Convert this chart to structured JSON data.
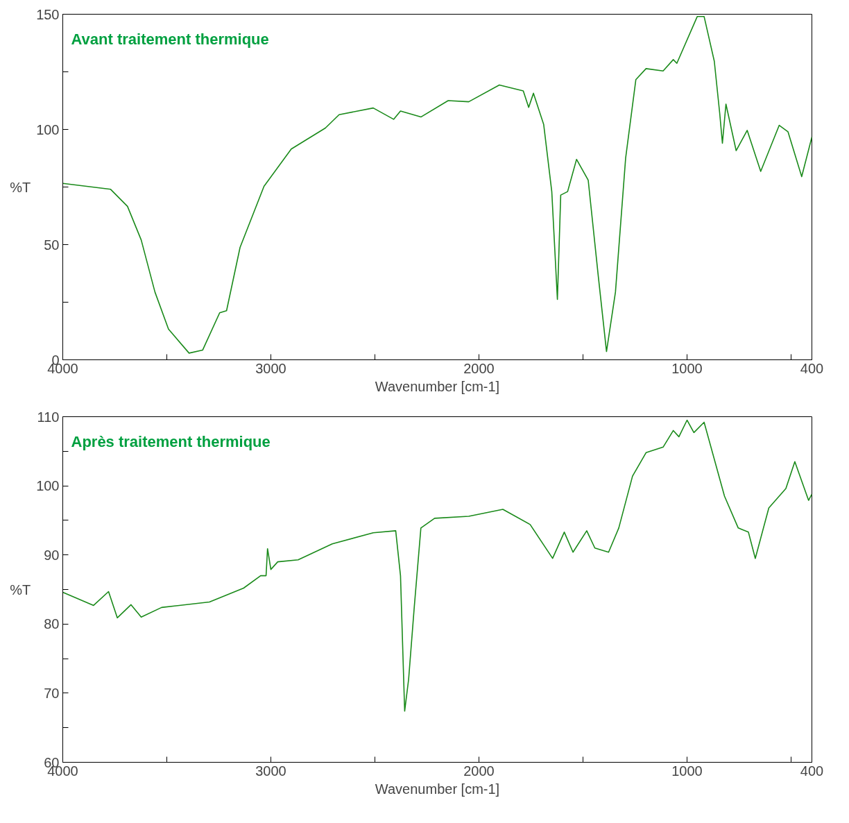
{
  "chart_data": [
    {
      "type": "line",
      "xlabel": "Wavenumber [cm-1]",
      "ylabel": "%T",
      "annotations": [
        "Avant traitement thermique"
      ],
      "grid": false,
      "xlim": [
        4000,
        400
      ],
      "ylim": [
        0,
        150
      ],
      "xticks": [
        4000,
        {
          "value": 3500,
          "label": null
        },
        3000,
        {
          "value": 2500,
          "label": null
        },
        2000,
        {
          "value": 1500,
          "label": null
        },
        1000,
        {
          "value": 500,
          "label": null
        },
        400
      ],
      "yticks": [
        0,
        {
          "value": 25,
          "label": null
        },
        50,
        {
          "value": 75,
          "label": null
        },
        100,
        {
          "value": 125,
          "label": null
        },
        150
      ],
      "series": [
        {
          "color": "#1a8a1a",
          "x": [
            4000,
            3770,
            3689,
            3623,
            3557,
            3492,
            3393,
            3328,
            3246,
            3213,
            3148,
            3033,
            2902,
            2738,
            2672,
            2508,
            2410,
            2377,
            2279,
            2148,
            2049,
            1902,
            1787,
            1761,
            1738,
            1689,
            1650,
            1623,
            1607,
            1574,
            1531,
            1475,
            1426,
            1387,
            1344,
            1295,
            1246,
            1197,
            1115,
            1066,
            1049,
            951,
            918,
            869,
            843,
            830,
            813,
            764,
            711,
            646,
            557,
            515,
            449,
            400
          ],
          "values": [
            76.6,
            74,
            66.6,
            52,
            29.4,
            13.3,
            2.9,
            4.2,
            20.4,
            21.3,
            48.8,
            75.3,
            91.5,
            100.6,
            106.4,
            109.3,
            104.4,
            108,
            105.4,
            112.5,
            112,
            119.3,
            116.7,
            109.6,
            115.7,
            102.2,
            73,
            26.2,
            71.5,
            73,
            87,
            78,
            35.9,
            3.6,
            29.4,
            87.6,
            121.6,
            126.4,
            125.4,
            130.3,
            128.7,
            149,
            149,
            129.6,
            107,
            94,
            111,
            90.8,
            99.6,
            81.8,
            101.8,
            99,
            79.5,
            96.7
          ]
        }
      ]
    },
    {
      "type": "line",
      "xlabel": "Wavenumber [cm-1]",
      "ylabel": "%T",
      "annotations": [
        "Après traitement thermique"
      ],
      "grid": false,
      "xlim": [
        4000,
        400
      ],
      "ylim": [
        60,
        110
      ],
      "xticks": [
        4000,
        {
          "value": 3500,
          "label": null
        },
        3000,
        {
          "value": 2500,
          "label": null
        },
        2000,
        {
          "value": 1500,
          "label": null
        },
        1000,
        {
          "value": 500,
          "label": null
        },
        400
      ],
      "yticks": [
        60,
        {
          "value": 65,
          "label": null
        },
        70,
        {
          "value": 75,
          "label": null
        },
        80,
        {
          "value": 85,
          "label": null
        },
        90,
        {
          "value": 95,
          "label": null
        },
        100,
        {
          "value": 105,
          "label": null
        },
        110
      ],
      "series": [
        {
          "color": "#1a8a1a",
          "x": [
            4000,
            3852,
            3780,
            3738,
            3672,
            3623,
            3525,
            3295,
            3131,
            3049,
            3023,
            3016,
            3000,
            2967,
            2869,
            2705,
            2508,
            2400,
            2377,
            2357,
            2338,
            2311,
            2279,
            2213,
            2049,
            1885,
            1754,
            1646,
            1590,
            1548,
            1482,
            1443,
            1377,
            1328,
            1262,
            1197,
            1115,
            1066,
            1039,
            1000,
            967,
            918,
            820,
            754,
            705,
            672,
            607,
            525,
            482,
            416,
            400
          ],
          "values": [
            84.6,
            82.7,
            84.7,
            80.9,
            82.8,
            81,
            82.4,
            83.2,
            85.2,
            87,
            87,
            90.9,
            87.9,
            89,
            89.3,
            91.6,
            93.2,
            93.5,
            87,
            67.4,
            72,
            82.4,
            93.9,
            95.3,
            95.6,
            96.6,
            94.4,
            89.5,
            93.3,
            90.4,
            93.5,
            91,
            90.4,
            93.9,
            101.4,
            104.8,
            105.6,
            108,
            107.1,
            109.5,
            107.7,
            109.2,
            98.5,
            93.9,
            93.3,
            89.5,
            96.8,
            99.6,
            103.5,
            97.9,
            98.8
          ]
        }
      ]
    }
  ]
}
